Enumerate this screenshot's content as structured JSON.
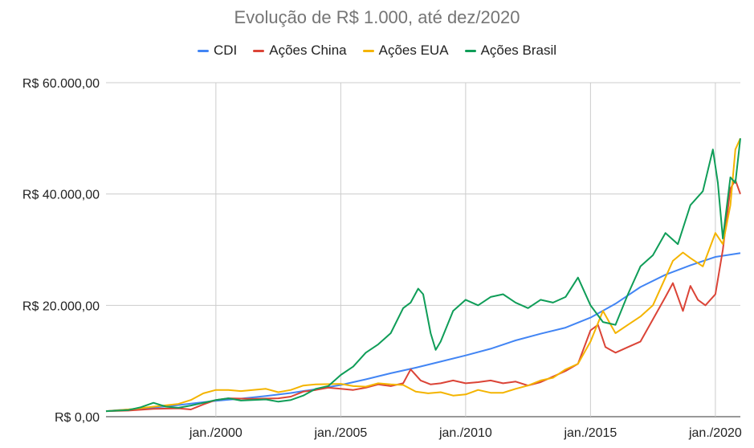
{
  "chart_data": {
    "type": "line",
    "title": "Evolução de R$ 1.000, até dez/2020",
    "legend_position": "top",
    "grid": true,
    "xlabel": "",
    "ylabel": "",
    "xlim": [
      1995.6,
      2021.0
    ],
    "ylim": [
      0,
      60000
    ],
    "y_ticks": [
      {
        "value": 0,
        "label": "R$ 0,00"
      },
      {
        "value": 20000,
        "label": "R$ 20.000,00"
      },
      {
        "value": 40000,
        "label": "R$ 40.000,00"
      },
      {
        "value": 60000,
        "label": "R$ 60.000,00"
      }
    ],
    "x_ticks": [
      {
        "value": 2000,
        "label": "jan./2000"
      },
      {
        "value": 2005,
        "label": "jan./2005"
      },
      {
        "value": 2010,
        "label": "jan./2010"
      },
      {
        "value": 2015,
        "label": "jan./2015"
      },
      {
        "value": 2020,
        "label": "jan./2020"
      }
    ],
    "series": [
      {
        "name": "CDI",
        "color": "#4285f4",
        "points": [
          [
            1995.6,
            1000
          ],
          [
            1996.0,
            1150
          ],
          [
            1997.0,
            1450
          ],
          [
            1998.0,
            1850
          ],
          [
            1999.0,
            2350
          ],
          [
            2000.0,
            2850
          ],
          [
            2001.0,
            3250
          ],
          [
            2002.0,
            3700
          ],
          [
            2003.0,
            4250
          ],
          [
            2004.0,
            4950
          ],
          [
            2005.0,
            5700
          ],
          [
            2006.0,
            6700
          ],
          [
            2007.0,
            7800
          ],
          [
            2008.0,
            8800
          ],
          [
            2009.0,
            9900
          ],
          [
            2010.0,
            11000
          ],
          [
            2011.0,
            12200
          ],
          [
            2012.0,
            13700
          ],
          [
            2013.0,
            14900
          ],
          [
            2014.0,
            16000
          ],
          [
            2015.0,
            17800
          ],
          [
            2016.0,
            20300
          ],
          [
            2017.0,
            23300
          ],
          [
            2018.0,
            25500
          ],
          [
            2019.0,
            27200
          ],
          [
            2020.0,
            28700
          ],
          [
            2021.0,
            29400
          ]
        ]
      },
      {
        "name": "Ações China",
        "color": "#db4437",
        "points": [
          [
            1995.6,
            1000
          ],
          [
            1996.5,
            1100
          ],
          [
            1997.5,
            1400
          ],
          [
            1998.5,
            1500
          ],
          [
            1999.0,
            1300
          ],
          [
            1999.5,
            2200
          ],
          [
            2000.0,
            3000
          ],
          [
            2000.5,
            3300
          ],
          [
            2001.5,
            3200
          ],
          [
            2002.5,
            3300
          ],
          [
            2003.0,
            3600
          ],
          [
            2003.5,
            4500
          ],
          [
            2004.0,
            4800
          ],
          [
            2004.5,
            5200
          ],
          [
            2005.0,
            5000
          ],
          [
            2005.5,
            4800
          ],
          [
            2006.0,
            5200
          ],
          [
            2006.5,
            5800
          ],
          [
            2007.0,
            5500
          ],
          [
            2007.5,
            6000
          ],
          [
            2007.8,
            8500
          ],
          [
            2008.2,
            6500
          ],
          [
            2008.6,
            5800
          ],
          [
            2009.0,
            6000
          ],
          [
            2009.5,
            6500
          ],
          [
            2010.0,
            6000
          ],
          [
            2010.5,
            6200
          ],
          [
            2011.0,
            6500
          ],
          [
            2011.5,
            6000
          ],
          [
            2012.0,
            6300
          ],
          [
            2012.5,
            5600
          ],
          [
            2013.0,
            6200
          ],
          [
            2013.5,
            7200
          ],
          [
            2014.0,
            8200
          ],
          [
            2014.5,
            9500
          ],
          [
            2015.0,
            15500
          ],
          [
            2015.3,
            16500
          ],
          [
            2015.6,
            12500
          ],
          [
            2016.0,
            11500
          ],
          [
            2016.5,
            12500
          ],
          [
            2017.0,
            13500
          ],
          [
            2017.5,
            17500
          ],
          [
            2018.0,
            21500
          ],
          [
            2018.3,
            24000
          ],
          [
            2018.7,
            19000
          ],
          [
            2019.0,
            23500
          ],
          [
            2019.3,
            21000
          ],
          [
            2019.6,
            20000
          ],
          [
            2020.0,
            22000
          ],
          [
            2020.3,
            30000
          ],
          [
            2020.6,
            41000
          ],
          [
            2020.8,
            42500
          ],
          [
            2021.0,
            40000
          ]
        ]
      },
      {
        "name": "Ações EUA",
        "color": "#f4b400",
        "points": [
          [
            1995.6,
            1000
          ],
          [
            1996.5,
            1300
          ],
          [
            1997.5,
            1800
          ],
          [
            1998.5,
            2300
          ],
          [
            1999.0,
            3000
          ],
          [
            1999.5,
            4200
          ],
          [
            2000.0,
            4800
          ],
          [
            2000.5,
            4800
          ],
          [
            2001.0,
            4600
          ],
          [
            2002.0,
            5000
          ],
          [
            2002.5,
            4400
          ],
          [
            2003.0,
            4800
          ],
          [
            2003.5,
            5600
          ],
          [
            2004.0,
            5800
          ],
          [
            2005.0,
            5900
          ],
          [
            2005.5,
            5500
          ],
          [
            2006.0,
            5400
          ],
          [
            2006.5,
            6000
          ],
          [
            2007.0,
            5800
          ],
          [
            2007.5,
            5700
          ],
          [
            2008.0,
            4500
          ],
          [
            2008.5,
            4200
          ],
          [
            2009.0,
            4400
          ],
          [
            2009.5,
            3800
          ],
          [
            2010.0,
            4000
          ],
          [
            2010.5,
            4800
          ],
          [
            2011.0,
            4300
          ],
          [
            2011.5,
            4300
          ],
          [
            2012.0,
            5000
          ],
          [
            2012.5,
            5600
          ],
          [
            2013.0,
            6500
          ],
          [
            2013.5,
            7000
          ],
          [
            2014.0,
            8500
          ],
          [
            2014.5,
            9500
          ],
          [
            2015.0,
            13500
          ],
          [
            2015.5,
            19000
          ],
          [
            2016.0,
            15000
          ],
          [
            2016.5,
            16500
          ],
          [
            2017.0,
            18000
          ],
          [
            2017.5,
            20000
          ],
          [
            2018.0,
            25000
          ],
          [
            2018.3,
            28000
          ],
          [
            2018.7,
            29500
          ],
          [
            2019.0,
            28500
          ],
          [
            2019.5,
            27000
          ],
          [
            2020.0,
            33000
          ],
          [
            2020.3,
            31000
          ],
          [
            2020.6,
            38000
          ],
          [
            2020.8,
            48000
          ],
          [
            2021.0,
            50000
          ]
        ]
      },
      {
        "name": "Ações Brasil",
        "color": "#0f9d58",
        "points": [
          [
            1995.6,
            1000
          ],
          [
            1996.5,
            1200
          ],
          [
            1997.0,
            1700
          ],
          [
            1997.5,
            2500
          ],
          [
            1998.0,
            1800
          ],
          [
            1998.5,
            1600
          ],
          [
            1999.0,
            2000
          ],
          [
            1999.5,
            2500
          ],
          [
            2000.0,
            3000
          ],
          [
            2000.5,
            3300
          ],
          [
            2001.0,
            2900
          ],
          [
            2002.0,
            3100
          ],
          [
            2002.5,
            2700
          ],
          [
            2003.0,
            3000
          ],
          [
            2003.5,
            3800
          ],
          [
            2004.0,
            5000
          ],
          [
            2004.5,
            5500
          ],
          [
            2005.0,
            7500
          ],
          [
            2005.5,
            9000
          ],
          [
            2006.0,
            11500
          ],
          [
            2006.5,
            13000
          ],
          [
            2007.0,
            15000
          ],
          [
            2007.5,
            19500
          ],
          [
            2007.8,
            20500
          ],
          [
            2008.1,
            23000
          ],
          [
            2008.3,
            22000
          ],
          [
            2008.6,
            15000
          ],
          [
            2008.8,
            12000
          ],
          [
            2009.0,
            13500
          ],
          [
            2009.5,
            19000
          ],
          [
            2010.0,
            21000
          ],
          [
            2010.5,
            20000
          ],
          [
            2011.0,
            21500
          ],
          [
            2011.5,
            22000
          ],
          [
            2012.0,
            20500
          ],
          [
            2012.5,
            19500
          ],
          [
            2013.0,
            21000
          ],
          [
            2013.5,
            20500
          ],
          [
            2014.0,
            21500
          ],
          [
            2014.5,
            25000
          ],
          [
            2015.0,
            20000
          ],
          [
            2015.5,
            17000
          ],
          [
            2016.0,
            16500
          ],
          [
            2016.5,
            22000
          ],
          [
            2017.0,
            27000
          ],
          [
            2017.5,
            29000
          ],
          [
            2018.0,
            33000
          ],
          [
            2018.5,
            31000
          ],
          [
            2019.0,
            38000
          ],
          [
            2019.5,
            40500
          ],
          [
            2019.9,
            48000
          ],
          [
            2020.1,
            42000
          ],
          [
            2020.3,
            32000
          ],
          [
            2020.6,
            43000
          ],
          [
            2020.8,
            42000
          ],
          [
            2021.0,
            50000
          ]
        ]
      }
    ]
  }
}
